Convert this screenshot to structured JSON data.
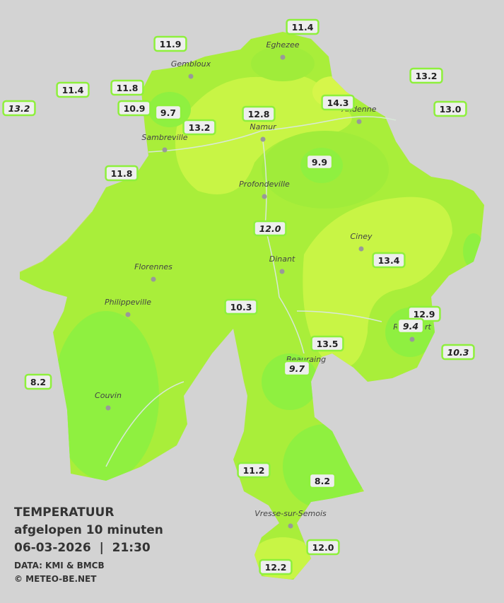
{
  "header": {
    "title": "TEMPERATUUR",
    "subtitle": "afgelopen 10 minuten",
    "datetime": "06-03-2026  |  21:30",
    "source": "DATA: KMI & BMCB",
    "copyright": "© METEO-BE.NET"
  },
  "cities": [
    {
      "label": "Eghezee"
    },
    {
      "label": "Gembloux"
    },
    {
      "label": "Andenne"
    },
    {
      "label": "Namur"
    },
    {
      "label": "Sambreville"
    },
    {
      "label": "Profondeville"
    },
    {
      "label": "Ciney"
    },
    {
      "label": "Dinant"
    },
    {
      "label": "Florennes"
    },
    {
      "label": "Philippeville"
    },
    {
      "label": "Rochefort"
    },
    {
      "label": "Beauraing"
    },
    {
      "label": "Couvin"
    },
    {
      "label": "Vresse-sur-Semois"
    }
  ],
  "stations": [
    {
      "value": "11.4"
    },
    {
      "value": "11.9"
    },
    {
      "value": "13.2"
    },
    {
      "value": "11.4"
    },
    {
      "value": "11.8"
    },
    {
      "value": "13.2"
    },
    {
      "value": "10.9"
    },
    {
      "value": "9.7"
    },
    {
      "value": "14.3"
    },
    {
      "value": "13.0"
    },
    {
      "value": "12.8"
    },
    {
      "value": "13.2"
    },
    {
      "value": "9.9"
    },
    {
      "value": "11.8"
    },
    {
      "value": "12.0"
    },
    {
      "value": "13.4"
    },
    {
      "value": "10.3"
    },
    {
      "value": "12.9"
    },
    {
      "value": "9.4"
    },
    {
      "value": "13.5"
    },
    {
      "value": "10.3"
    },
    {
      "value": "9.7"
    },
    {
      "value": "8.2"
    },
    {
      "value": "11.2"
    },
    {
      "value": "8.2"
    },
    {
      "value": "12.0"
    },
    {
      "value": "12.2"
    }
  ]
}
